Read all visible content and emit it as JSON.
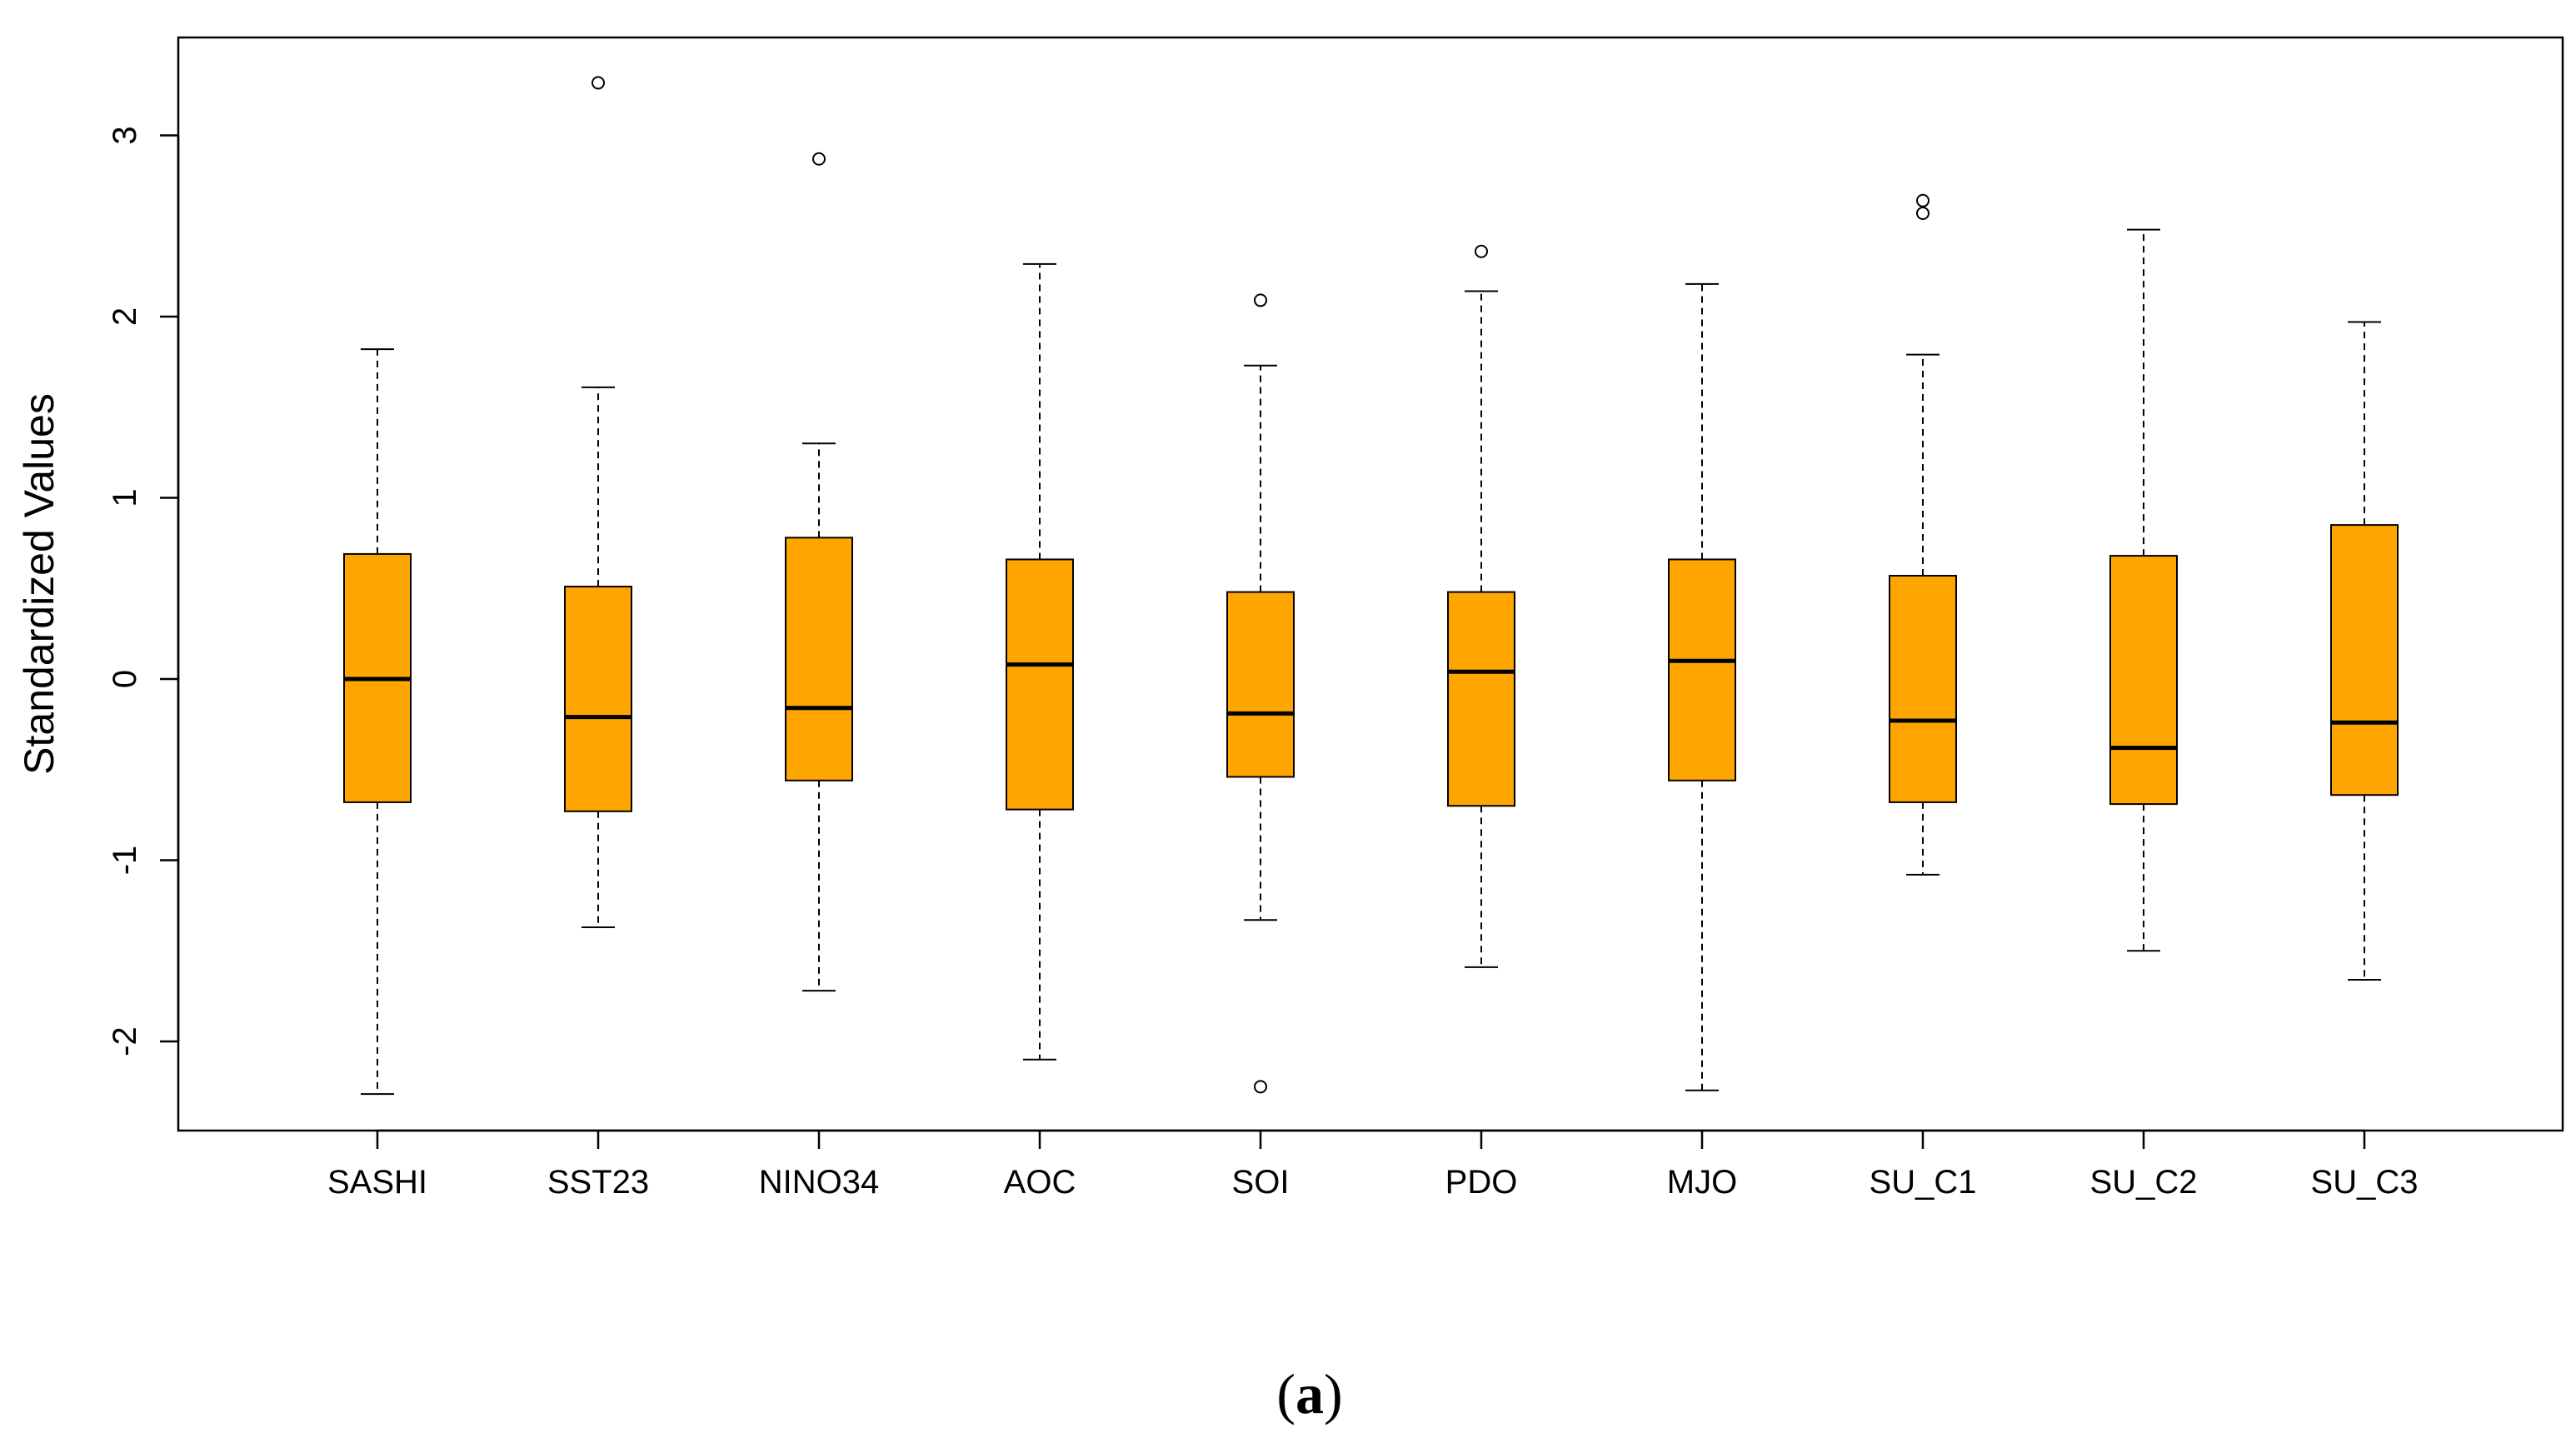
{
  "chart_data": {
    "type": "boxplot",
    "title": "",
    "xlabel": "",
    "ylabel": "Standardized Values",
    "ylim": [
      -2.5,
      3.5
    ],
    "yticks": [
      -2,
      -1,
      0,
      1,
      2,
      3
    ],
    "ytick_labels": [
      "-2",
      "-1",
      "0",
      "1",
      "2",
      "3"
    ],
    "box_color": "#FFA500",
    "grid": false,
    "categories": [
      "SASHI",
      "SST23",
      "NINO34",
      "AOC",
      "SOI",
      "PDO",
      "MJO",
      "SU_C1",
      "SU_C2",
      "SU_C3"
    ],
    "boxes": [
      {
        "name": "SASHI",
        "whisker_low": -2.29,
        "q1": -0.68,
        "median": 0.0,
        "q3": 0.69,
        "whisker_high": 1.82,
        "outliers": []
      },
      {
        "name": "SST23",
        "whisker_low": -1.37,
        "q1": -0.73,
        "median": -0.21,
        "q3": 0.51,
        "whisker_high": 1.61,
        "outliers": [
          3.29
        ]
      },
      {
        "name": "NINO34",
        "whisker_low": -1.72,
        "q1": -0.56,
        "median": -0.16,
        "q3": 0.78,
        "whisker_high": 1.3,
        "outliers": [
          2.87
        ]
      },
      {
        "name": "AOC",
        "whisker_low": -2.1,
        "q1": -0.72,
        "median": 0.08,
        "q3": 0.66,
        "whisker_high": 2.29,
        "outliers": []
      },
      {
        "name": "SOI",
        "whisker_low": -1.33,
        "q1": -0.54,
        "median": -0.19,
        "q3": 0.48,
        "whisker_high": 1.73,
        "outliers": [
          2.09,
          -2.25
        ]
      },
      {
        "name": "PDO",
        "whisker_low": -1.59,
        "q1": -0.7,
        "median": 0.04,
        "q3": 0.48,
        "whisker_high": 2.14,
        "outliers": [
          2.36
        ]
      },
      {
        "name": "MJO",
        "whisker_low": -2.27,
        "q1": -0.56,
        "median": 0.1,
        "q3": 0.66,
        "whisker_high": 2.18,
        "outliers": []
      },
      {
        "name": "SU_C1",
        "whisker_low": -1.08,
        "q1": -0.68,
        "median": -0.23,
        "q3": 0.57,
        "whisker_high": 1.79,
        "outliers": [
          2.57,
          2.64
        ]
      },
      {
        "name": "SU_C2",
        "whisker_low": -1.5,
        "q1": -0.69,
        "median": -0.38,
        "q3": 0.68,
        "whisker_high": 2.48,
        "outliers": []
      },
      {
        "name": "SU_C3",
        "whisker_low": -1.66,
        "q1": -0.64,
        "median": -0.24,
        "q3": 0.85,
        "whisker_high": 1.97,
        "outliers": []
      }
    ]
  },
  "caption": {
    "prefix": "(",
    "letter": "a",
    "suffix": ")"
  }
}
